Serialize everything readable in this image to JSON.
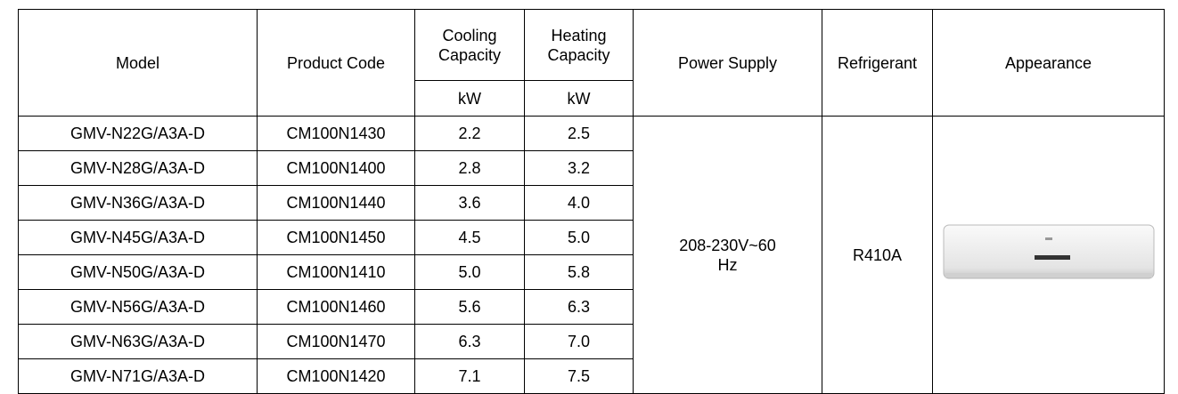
{
  "table": {
    "headers": [
      "Model",
      "Product Code",
      "Cooling Capacity",
      "Heating Capacity",
      "Power Supply",
      "Refrigerant",
      "Appearance"
    ],
    "units": [
      "kW",
      "kW"
    ],
    "rows": [
      [
        "GMV-N22G/A3A-D",
        "CM100N1430",
        "2.2",
        "2.5"
      ],
      [
        "GMV-N28G/A3A-D",
        "CM100N1400",
        "2.8",
        "3.2"
      ],
      [
        "GMV-N36G/A3A-D",
        "CM100N1440",
        "3.6",
        "4.0"
      ],
      [
        "GMV-N45G/A3A-D",
        "CM100N1450",
        "4.5",
        "5.0"
      ],
      [
        "GMV-N50G/A3A-D",
        "CM100N1410",
        "5.0",
        "5.8"
      ],
      [
        "GMV-N56G/A3A-D",
        "CM100N1460",
        "5.6",
        "6.3"
      ],
      [
        "GMV-N63G/A3A-D",
        "CM100N1470",
        "6.3",
        "7.0"
      ],
      [
        "GMV-N71G/A3A-D",
        "CM100N1420",
        "7.1",
        "7.5"
      ]
    ],
    "power_supply": "208-230V~60Hz",
    "refrigerant": "R410A"
  }
}
